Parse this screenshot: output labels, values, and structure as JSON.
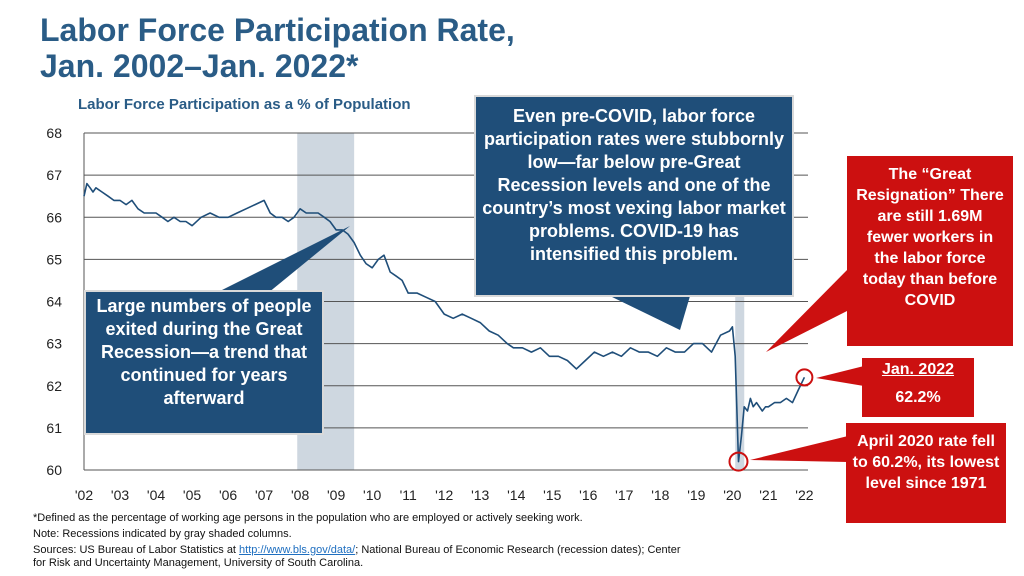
{
  "header": {
    "title_line1": "Labor Force Participation Rate,",
    "title_line2": "Jan. 2002–Jan. 2022*",
    "subtitle": "Labor Force Participation as a % of Population"
  },
  "chart_data": {
    "type": "line",
    "title": "Labor Force Participation Rate, Jan. 2002–Jan. 2022*",
    "ylabel": "Labor Force Participation as a % of Population",
    "xlabel": "",
    "ylim": [
      60,
      68
    ],
    "yticks": [
      60,
      61,
      62,
      63,
      64,
      65,
      66,
      67,
      68
    ],
    "xlim": [
      2002,
      2022.1
    ],
    "xticks": [
      {
        "x": 2002,
        "label": "'02"
      },
      {
        "x": 2003,
        "label": "'03"
      },
      {
        "x": 2004,
        "label": "'04"
      },
      {
        "x": 2005,
        "label": "'05"
      },
      {
        "x": 2006,
        "label": "'06"
      },
      {
        "x": 2007,
        "label": "'07"
      },
      {
        "x": 2008,
        "label": "'08"
      },
      {
        "x": 2009,
        "label": "'09"
      },
      {
        "x": 2010,
        "label": "'10"
      },
      {
        "x": 2011,
        "label": "'11"
      },
      {
        "x": 2012,
        "label": "'12"
      },
      {
        "x": 2013,
        "label": "'13"
      },
      {
        "x": 2014,
        "label": "'14"
      },
      {
        "x": 2015,
        "label": "'15"
      },
      {
        "x": 2016,
        "label": "'16"
      },
      {
        "x": 2017,
        "label": "'17"
      },
      {
        "x": 2018,
        "label": "'18"
      },
      {
        "x": 2019,
        "label": "'19"
      },
      {
        "x": 2020,
        "label": "'20"
      },
      {
        "x": 2021,
        "label": "'21"
      },
      {
        "x": 2022,
        "label": "'22"
      }
    ],
    "recessions": [
      {
        "start": 2007.92,
        "end": 2009.5
      },
      {
        "start": 2020.08,
        "end": 2020.33
      }
    ],
    "series": [
      {
        "name": "Labor Force Participation Rate",
        "color": "#1f4e79",
        "x": [
          2002.0,
          2002.08,
          2002.17,
          2002.25,
          2002.33,
          2002.5,
          2002.67,
          2002.83,
          2003.0,
          2003.17,
          2003.33,
          2003.5,
          2003.67,
          2003.83,
          2004.0,
          2004.17,
          2004.33,
          2004.5,
          2004.67,
          2004.83,
          2005.0,
          2005.25,
          2005.5,
          2005.75,
          2006.0,
          2006.25,
          2006.5,
          2006.75,
          2007.0,
          2007.17,
          2007.33,
          2007.5,
          2007.67,
          2007.83,
          2008.0,
          2008.17,
          2008.33,
          2008.5,
          2008.67,
          2008.83,
          2009.0,
          2009.17,
          2009.33,
          2009.5,
          2009.67,
          2009.83,
          2010.0,
          2010.17,
          2010.33,
          2010.5,
          2010.67,
          2010.83,
          2011.0,
          2011.25,
          2011.5,
          2011.75,
          2012.0,
          2012.25,
          2012.5,
          2012.75,
          2013.0,
          2013.25,
          2013.5,
          2013.75,
          2013.92,
          2014.17,
          2014.42,
          2014.67,
          2014.92,
          2015.17,
          2015.42,
          2015.67,
          2015.92,
          2016.17,
          2016.42,
          2016.67,
          2016.92,
          2017.17,
          2017.42,
          2017.67,
          2017.92,
          2018.17,
          2018.42,
          2018.67,
          2018.92,
          2019.17,
          2019.42,
          2019.67,
          2019.92,
          2020.0,
          2020.08,
          2020.17,
          2020.25,
          2020.33,
          2020.42,
          2020.5,
          2020.58,
          2020.67,
          2020.75,
          2020.83,
          2020.92,
          2021.0,
          2021.17,
          2021.33,
          2021.5,
          2021.67,
          2021.83,
          2022.0
        ],
        "values": [
          66.5,
          66.8,
          66.7,
          66.6,
          66.7,
          66.6,
          66.5,
          66.4,
          66.4,
          66.3,
          66.4,
          66.2,
          66.1,
          66.1,
          66.1,
          66.0,
          65.9,
          66.0,
          65.9,
          65.9,
          65.8,
          66.0,
          66.1,
          66.0,
          66.0,
          66.1,
          66.2,
          66.3,
          66.4,
          66.1,
          66.0,
          66.0,
          65.9,
          66.0,
          66.2,
          66.1,
          66.1,
          66.1,
          66.0,
          65.9,
          65.7,
          65.7,
          65.6,
          65.4,
          65.1,
          64.9,
          64.8,
          65.0,
          65.1,
          64.7,
          64.6,
          64.5,
          64.2,
          64.2,
          64.1,
          64.0,
          63.7,
          63.6,
          63.7,
          63.6,
          63.5,
          63.3,
          63.2,
          63.0,
          62.9,
          62.9,
          62.8,
          62.9,
          62.7,
          62.7,
          62.6,
          62.4,
          62.6,
          62.8,
          62.7,
          62.8,
          62.7,
          62.9,
          62.8,
          62.8,
          62.7,
          62.9,
          62.8,
          62.8,
          63.0,
          63.0,
          62.8,
          63.2,
          63.3,
          63.4,
          62.7,
          60.2,
          60.8,
          61.5,
          61.4,
          61.7,
          61.5,
          61.6,
          61.5,
          61.4,
          61.5,
          61.5,
          61.6,
          61.6,
          61.7,
          61.6,
          61.9,
          62.2
        ]
      }
    ],
    "annotations": [
      {
        "label": "Jan. 2022",
        "value": "62.2%"
      },
      {
        "label": "April 2020",
        "value": "60.2%"
      }
    ]
  },
  "callouts": {
    "great_recession": "Large numbers of people exited during the Great Recession—a trend that continued for years afterward",
    "pre_covid": "Even pre-COVID, labor force participation rates were stubbornly low—far below pre-Great Recession levels and one of the country’s most vexing labor market problems. COVID-19 has intensified this problem.",
    "great_resignation": "The “Great Resignation” There are still 1.69M fewer workers in the labor force today than before COVID",
    "jan2022_label": "Jan. 2022",
    "jan2022_value": "62.2%",
    "april2020": "April 2020 rate fell to 60.2%, its lowest level since 1971"
  },
  "footer": {
    "note1": "*Defined as the percentage of working age persons in the population who are employed or actively seeking work.",
    "note2": "Note: Recessions indicated by gray shaded columns.",
    "sources_prefix": "Sources: US Bureau of Labor Statistics at ",
    "sources_link": "http://www.bls.gov/data/",
    "sources_suffix": ";   National Bureau of Economic Research (recession dates); Center",
    "sources_line2": "for Risk and Uncertainty Management, University of South Carolina."
  },
  "colors": {
    "title": "#2a5c86",
    "line": "#1f4e79",
    "callout_blue": "#1f4e79",
    "callout_red": "#cc1010",
    "recession": "#c9d3dd"
  }
}
